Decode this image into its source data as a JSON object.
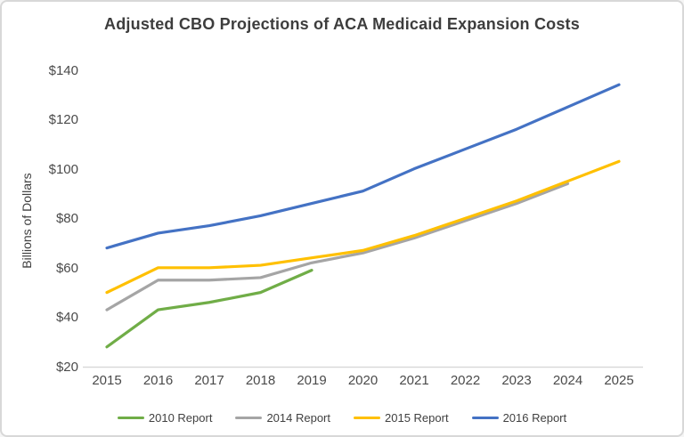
{
  "title": "Adjusted CBO Projections of ACA Medicaid Expansion Costs",
  "y_axis_title": "Billions of Dollars",
  "chart_data": {
    "type": "line",
    "title": "Adjusted CBO Projections of ACA Medicaid Expansion Costs",
    "xlabel": "",
    "ylabel": "Billions of Dollars",
    "x": [
      2015,
      2016,
      2017,
      2018,
      2019,
      2020,
      2021,
      2022,
      2023,
      2024,
      2025
    ],
    "ylim": [
      20,
      140
    ],
    "y_ticks": [
      20,
      40,
      60,
      80,
      100,
      120,
      140
    ],
    "tick_prefix": "$",
    "grid": false,
    "legend_position": "bottom",
    "axis_color": "#d9d9d9",
    "series": [
      {
        "name": "2010 Report",
        "color": "#70AD47",
        "values": [
          28,
          43,
          46,
          50,
          59,
          null,
          null,
          null,
          null,
          null,
          null
        ]
      },
      {
        "name": "2014 Report",
        "color": "#A5A5A5",
        "values": [
          43,
          55,
          55,
          56,
          62,
          66,
          72,
          79,
          86,
          94,
          null
        ]
      },
      {
        "name": "2015 Report",
        "color": "#FFC000",
        "values": [
          50,
          60,
          60,
          61,
          64,
          67,
          73,
          80,
          87,
          95,
          103
        ]
      },
      {
        "name": "2016 Report",
        "color": "#4472C4",
        "values": [
          68,
          74,
          77,
          81,
          86,
          91,
          100,
          108,
          116,
          125,
          134
        ]
      }
    ]
  }
}
